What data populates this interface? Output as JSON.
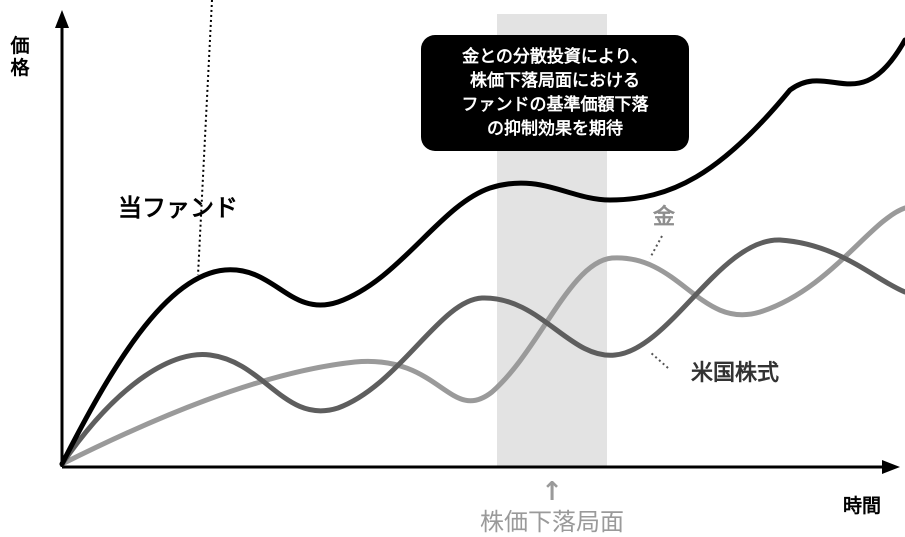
{
  "chart_data": {
    "type": "line",
    "title": "",
    "ylabel": "価格",
    "xlabel": "時間",
    "highlight": {
      "label": "株価下落局面",
      "arrow": "↑"
    },
    "callout": {
      "lines": [
        "金との分散投資により、",
        "株価下落局面における",
        "ファンドの基準価額下落",
        "の抑制効果を期待"
      ]
    },
    "series": [
      {
        "name": "当ファンド",
        "color": "#000000"
      },
      {
        "name": "金",
        "color": "#9a9a9a"
      },
      {
        "name": "米国株式",
        "color": "#5e5e5e"
      }
    ],
    "grid": false,
    "highlight_color": "#e3e3e3"
  }
}
